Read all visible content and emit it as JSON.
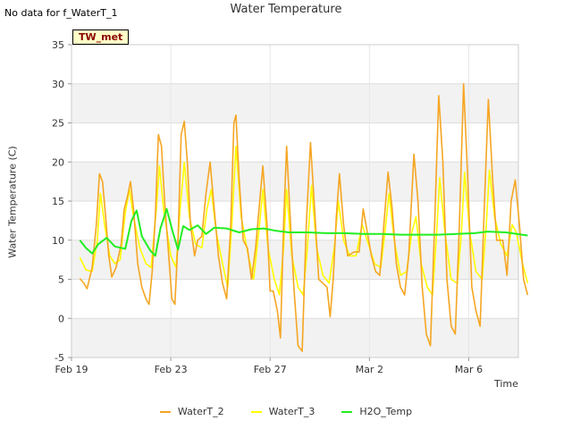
{
  "notice": "No data for f_WaterT_1",
  "badge": "TW_met",
  "chart_data": {
    "type": "line",
    "title": "Water Temperature",
    "xlabel": "Time",
    "ylabel": "Water Temperature (C)",
    "ylim": [
      -5,
      35
    ],
    "yticks": [
      -5,
      0,
      5,
      10,
      15,
      20,
      25,
      30,
      35
    ],
    "xlim": [
      "2024-02-19",
      "2024-03-08"
    ],
    "xticks": [
      {
        "date": "2024-02-19",
        "label": "Feb 19"
      },
      {
        "date": "2024-02-23",
        "label": "Feb 23"
      },
      {
        "date": "2024-02-27",
        "label": "Feb 27"
      },
      {
        "date": "2024-03-02",
        "label": "Mar 2"
      },
      {
        "date": "2024-03-06",
        "label": "Mar 6"
      }
    ],
    "grid": true,
    "legend_position": "bottom",
    "series": [
      {
        "name": "WaterT_2",
        "color": "#f5a623",
        "points": [
          [
            "2024-02-19T08:00",
            5.1
          ],
          [
            "2024-02-19T12:00",
            4.5
          ],
          [
            "2024-02-19T15:00",
            3.8
          ],
          [
            "2024-02-19T20:00",
            6.5
          ],
          [
            "2024-02-20T00:00",
            12.0
          ],
          [
            "2024-02-20T03:00",
            18.5
          ],
          [
            "2024-02-20T06:00",
            17.5
          ],
          [
            "2024-02-20T09:00",
            13.0
          ],
          [
            "2024-02-20T12:00",
            8.0
          ],
          [
            "2024-02-20T15:00",
            5.3
          ],
          [
            "2024-02-20T19:00",
            6.5
          ],
          [
            "2024-02-21T00:00",
            9.5
          ],
          [
            "2024-02-21T03:00",
            14.0
          ],
          [
            "2024-02-21T06:00",
            15.5
          ],
          [
            "2024-02-21T09:00",
            17.5
          ],
          [
            "2024-02-21T12:00",
            14.0
          ],
          [
            "2024-02-21T16:00",
            7.0
          ],
          [
            "2024-02-21T20:00",
            4.0
          ],
          [
            "2024-02-22T00:00",
            2.5
          ],
          [
            "2024-02-22T03:00",
            1.8
          ],
          [
            "2024-02-22T06:00",
            6.0
          ],
          [
            "2024-02-22T09:00",
            13.0
          ],
          [
            "2024-02-22T12:00",
            23.5
          ],
          [
            "2024-02-22T15:00",
            22.0
          ],
          [
            "2024-02-22T18:00",
            15.0
          ],
          [
            "2024-02-22T22:00",
            8.0
          ],
          [
            "2024-02-23T01:00",
            2.5
          ],
          [
            "2024-02-23T04:00",
            1.8
          ],
          [
            "2024-02-23T07:00",
            10.0
          ],
          [
            "2024-02-23T10:00",
            23.5
          ],
          [
            "2024-02-23T13:00",
            25.2
          ],
          [
            "2024-02-23T16:00",
            20.0
          ],
          [
            "2024-02-23T19:00",
            12.0
          ],
          [
            "2024-02-23T23:00",
            8.0
          ],
          [
            "2024-02-24T02:00",
            10.0
          ],
          [
            "2024-02-24T06:00",
            10.5
          ],
          [
            "2024-02-24T10:00",
            16.0
          ],
          [
            "2024-02-24T14:00",
            20.0
          ],
          [
            "2024-02-24T18:00",
            14.0
          ],
          [
            "2024-02-24T22:00",
            8.0
          ],
          [
            "2024-02-25T02:00",
            4.5
          ],
          [
            "2024-02-25T06:00",
            2.5
          ],
          [
            "2024-02-25T10:00",
            12.0
          ],
          [
            "2024-02-25T13:00",
            25.0
          ],
          [
            "2024-02-25T15:00",
            26.0
          ],
          [
            "2024-02-25T18:00",
            18.0
          ],
          [
            "2024-02-25T22:00",
            10.0
          ],
          [
            "2024-02-26T02:00",
            9.0
          ],
          [
            "2024-02-26T06:00",
            5.0
          ],
          [
            "2024-02-26T10:00",
            9.0
          ],
          [
            "2024-02-26T14:00",
            15.0
          ],
          [
            "2024-02-26T17:00",
            19.5
          ],
          [
            "2024-02-26T21:00",
            12.0
          ],
          [
            "2024-02-27T00:00",
            3.5
          ],
          [
            "2024-02-27T03:00",
            3.5
          ],
          [
            "2024-02-27T07:00",
            1.0
          ],
          [
            "2024-02-27T10:00",
            -2.5
          ],
          [
            "2024-02-27T13:00",
            12.0
          ],
          [
            "2024-02-27T16:00",
            22.0
          ],
          [
            "2024-02-27T19:00",
            14.0
          ],
          [
            "2024-02-27T23:00",
            4.0
          ],
          [
            "2024-02-28T03:00",
            -3.5
          ],
          [
            "2024-02-28T07:00",
            -4.2
          ],
          [
            "2024-02-28T11:00",
            12.0
          ],
          [
            "2024-02-28T15:00",
            22.5
          ],
          [
            "2024-02-28T19:00",
            14.0
          ],
          [
            "2024-02-28T23:00",
            5.0
          ],
          [
            "2024-02-29T03:00",
            4.5
          ],
          [
            "2024-02-29T07:00",
            4.0
          ],
          [
            "2024-02-29T10:00",
            0.2
          ],
          [
            "2024-02-29T13:00",
            5.0
          ],
          [
            "2024-02-29T16:00",
            13.0
          ],
          [
            "2024-02-29T19:00",
            18.5
          ],
          [
            "2024-02-29T23:00",
            12.0
          ],
          [
            "2024-03-01T03:00",
            8.0
          ],
          [
            "2024-03-01T09:00",
            8.5
          ],
          [
            "2024-03-01T14:00",
            8.5
          ],
          [
            "2024-03-01T18:00",
            14.0
          ],
          [
            "2024-03-01T22:00",
            11.0
          ],
          [
            "2024-03-02T02:00",
            8.0
          ],
          [
            "2024-03-02T06:00",
            6.0
          ],
          [
            "2024-03-02T10:00",
            5.5
          ],
          [
            "2024-03-02T14:00",
            12.0
          ],
          [
            "2024-03-02T18:00",
            18.7
          ],
          [
            "2024-03-02T22:00",
            14.0
          ],
          [
            "2024-03-03T02:00",
            7.0
          ],
          [
            "2024-03-03T06:00",
            4.0
          ],
          [
            "2024-03-03T10:00",
            3.0
          ],
          [
            "2024-03-03T14:00",
            8.0
          ],
          [
            "2024-03-03T19:00",
            21.0
          ],
          [
            "2024-03-03T23:00",
            15.0
          ],
          [
            "2024-03-04T03:00",
            4.0
          ],
          [
            "2024-03-04T07:00",
            -2.0
          ],
          [
            "2024-03-04T11:00",
            -3.5
          ],
          [
            "2024-03-04T15:00",
            12.0
          ],
          [
            "2024-03-04T19:00",
            28.5
          ],
          [
            "2024-03-04T23:00",
            20.0
          ],
          [
            "2024-03-05T03:00",
            5.0
          ],
          [
            "2024-03-05T07:00",
            -1.0
          ],
          [
            "2024-03-05T11:00",
            -2.0
          ],
          [
            "2024-03-05T15:00",
            12.0
          ],
          [
            "2024-03-05T19:00",
            30.0
          ],
          [
            "2024-03-05T23:00",
            18.0
          ],
          [
            "2024-03-06T03:00",
            4.0
          ],
          [
            "2024-03-06T07:00",
            1.0
          ],
          [
            "2024-03-06T11:00",
            -1.0
          ],
          [
            "2024-03-06T15:00",
            14.0
          ],
          [
            "2024-03-06T19:00",
            28.0
          ],
          [
            "2024-03-06T23:00",
            18.0
          ],
          [
            "2024-03-07T03:00",
            10.0
          ],
          [
            "2024-03-07T09:00",
            10.0
          ],
          [
            "2024-03-07T13:00",
            5.5
          ],
          [
            "2024-03-07T17:00",
            15.0
          ],
          [
            "2024-03-07T21:00",
            17.7
          ],
          [
            "2024-03-08T01:00",
            12.0
          ],
          [
            "2024-03-08T05:00",
            5.0
          ],
          [
            "2024-03-08T09:00",
            3.0
          ]
        ]
      },
      {
        "name": "WaterT_3",
        "color": "#ffff00",
        "points": [
          [
            "2024-02-19T08:00",
            7.8
          ],
          [
            "2024-02-19T14:00",
            6.2
          ],
          [
            "2024-02-19T20:00",
            6.0
          ],
          [
            "2024-02-20T01:00",
            10.0
          ],
          [
            "2024-02-20T04:00",
            16.0
          ],
          [
            "2024-02-20T08:00",
            12.0
          ],
          [
            "2024-02-20T13:00",
            8.0
          ],
          [
            "2024-02-20T18:00",
            7.0
          ],
          [
            "2024-02-20T23:00",
            7.5
          ],
          [
            "2024-02-21T04:00",
            13.5
          ],
          [
            "2024-02-21T08:00",
            16.5
          ],
          [
            "2024-02-21T12:00",
            13.0
          ],
          [
            "2024-02-21T18:00",
            9.0
          ],
          [
            "2024-02-22T00:00",
            7.0
          ],
          [
            "2024-02-22T05:00",
            6.5
          ],
          [
            "2024-02-22T10:00",
            14.0
          ],
          [
            "2024-02-22T13:00",
            19.5
          ],
          [
            "2024-02-22T17:00",
            14.0
          ],
          [
            "2024-02-23T00:00",
            8.0
          ],
          [
            "2024-02-23T05:00",
            6.5
          ],
          [
            "2024-02-23T09:00",
            14.0
          ],
          [
            "2024-02-23T13:00",
            20.0
          ],
          [
            "2024-02-23T18:00",
            13.0
          ],
          [
            "2024-02-24T00:00",
            9.5
          ],
          [
            "2024-02-24T06:00",
            9.0
          ],
          [
            "2024-02-24T11:00",
            14.0
          ],
          [
            "2024-02-24T15:00",
            16.5
          ],
          [
            "2024-02-24T20:00",
            11.0
          ],
          [
            "2024-02-25T02:00",
            7.0
          ],
          [
            "2024-02-25T07:00",
            4.0
          ],
          [
            "2024-02-25T11:00",
            12.0
          ],
          [
            "2024-02-25T15:00",
            22.0
          ],
          [
            "2024-02-25T20:00",
            13.0
          ],
          [
            "2024-02-26T03:00",
            8.0
          ],
          [
            "2024-02-26T08:00",
            5.0
          ],
          [
            "2024-02-26T13:00",
            11.0
          ],
          [
            "2024-02-26T17:00",
            16.5
          ],
          [
            "2024-02-26T22:00",
            9.0
          ],
          [
            "2024-02-27T04:00",
            5.0
          ],
          [
            "2024-02-27T09:00",
            3.0
          ],
          [
            "2024-02-27T13:00",
            9.0
          ],
          [
            "2024-02-27T16:00",
            16.5
          ],
          [
            "2024-02-27T21:00",
            8.0
          ],
          [
            "2024-02-28T03:00",
            4.0
          ],
          [
            "2024-02-28T08:00",
            3.0
          ],
          [
            "2024-02-28T12:00",
            9.0
          ],
          [
            "2024-02-28T16:00",
            17.0
          ],
          [
            "2024-02-28T21:00",
            9.0
          ],
          [
            "2024-02-29T03:00",
            5.5
          ],
          [
            "2024-02-29T09:00",
            4.5
          ],
          [
            "2024-02-29T14:00",
            9.0
          ],
          [
            "2024-02-29T18:00",
            15.0
          ],
          [
            "2024-02-29T23:00",
            10.0
          ],
          [
            "2024-03-01T05:00",
            8.0
          ],
          [
            "2024-03-01T11:00",
            8.0
          ],
          [
            "2024-03-01T17:00",
            12.0
          ],
          [
            "2024-03-01T23:00",
            9.5
          ],
          [
            "2024-03-02T05:00",
            7.0
          ],
          [
            "2024-03-02T11:00",
            6.5
          ],
          [
            "2024-03-02T15:00",
            11.0
          ],
          [
            "2024-03-02T19:00",
            16.0
          ],
          [
            "2024-03-03T00:00",
            10.0
          ],
          [
            "2024-03-03T06:00",
            5.5
          ],
          [
            "2024-03-03T12:00",
            6.0
          ],
          [
            "2024-03-03T17:00",
            11.0
          ],
          [
            "2024-03-03T21:00",
            13.0
          ],
          [
            "2024-03-04T02:00",
            7.0
          ],
          [
            "2024-03-04T08:00",
            4.0
          ],
          [
            "2024-03-04T13:00",
            3.0
          ],
          [
            "2024-03-04T17:00",
            11.0
          ],
          [
            "2024-03-04T20:00",
            18.0
          ],
          [
            "2024-03-05T01:00",
            11.0
          ],
          [
            "2024-03-05T07:00",
            5.0
          ],
          [
            "2024-03-05T13:00",
            4.5
          ],
          [
            "2024-03-05T17:00",
            11.0
          ],
          [
            "2024-03-05T20:00",
            18.7
          ],
          [
            "2024-03-06T01:00",
            11.0
          ],
          [
            "2024-03-06T07:00",
            6.0
          ],
          [
            "2024-03-06T13:00",
            5.0
          ],
          [
            "2024-03-06T17:00",
            12.0
          ],
          [
            "2024-03-06T20:00",
            19.0
          ],
          [
            "2024-03-07T01:00",
            13.0
          ],
          [
            "2024-03-07T07:00",
            9.5
          ],
          [
            "2024-03-07T13:00",
            8.0
          ],
          [
            "2024-03-07T18:00",
            12.0
          ],
          [
            "2024-03-07T22:00",
            11.0
          ],
          [
            "2024-03-08T04:00",
            7.0
          ],
          [
            "2024-03-08T09:00",
            4.5
          ]
        ]
      },
      {
        "name": "H2O_Temp",
        "color": "#22ee22",
        "points": [
          [
            "2024-02-19T08:00",
            10.0
          ],
          [
            "2024-02-19T14:00",
            9.0
          ],
          [
            "2024-02-19T20:00",
            8.3
          ],
          [
            "2024-02-20T02:00",
            9.5
          ],
          [
            "2024-02-20T10:00",
            10.3
          ],
          [
            "2024-02-20T18:00",
            9.2
          ],
          [
            "2024-02-21T04:00",
            8.9
          ],
          [
            "2024-02-21T10:00",
            12.5
          ],
          [
            "2024-02-21T15:00",
            13.8
          ],
          [
            "2024-02-21T20:00",
            10.5
          ],
          [
            "2024-02-22T04:00",
            8.7
          ],
          [
            "2024-02-22T09:00",
            8.0
          ],
          [
            "2024-02-22T14:00",
            11.5
          ],
          [
            "2024-02-22T20:00",
            14.0
          ],
          [
            "2024-02-23T02:00",
            11.0
          ],
          [
            "2024-02-23T07:00",
            8.8
          ],
          [
            "2024-02-23T12:00",
            11.8
          ],
          [
            "2024-02-23T18:00",
            11.3
          ],
          [
            "2024-02-24T02:00",
            11.9
          ],
          [
            "2024-02-24T10:00",
            10.8
          ],
          [
            "2024-02-24T18:00",
            11.6
          ],
          [
            "2024-02-25T06:00",
            11.5
          ],
          [
            "2024-02-25T18:00",
            11.0
          ],
          [
            "2024-02-26T06:00",
            11.4
          ],
          [
            "2024-02-26T18:00",
            11.5
          ],
          [
            "2024-02-27T06:00",
            11.2
          ],
          [
            "2024-02-27T18:00",
            11.0
          ],
          [
            "2024-02-28T12:00",
            11.0
          ],
          [
            "2024-02-29T06:00",
            10.9
          ],
          [
            "2024-03-01T00:00",
            10.9
          ],
          [
            "2024-03-01T18:00",
            10.8
          ],
          [
            "2024-03-02T12:00",
            10.8
          ],
          [
            "2024-03-03T06:00",
            10.7
          ],
          [
            "2024-03-04T00:00",
            10.7
          ],
          [
            "2024-03-04T18:00",
            10.7
          ],
          [
            "2024-03-05T12:00",
            10.8
          ],
          [
            "2024-03-06T06:00",
            10.9
          ],
          [
            "2024-03-06T18:00",
            11.1
          ],
          [
            "2024-03-07T12:00",
            11.0
          ],
          [
            "2024-03-08T09:00",
            10.6
          ]
        ]
      }
    ]
  }
}
